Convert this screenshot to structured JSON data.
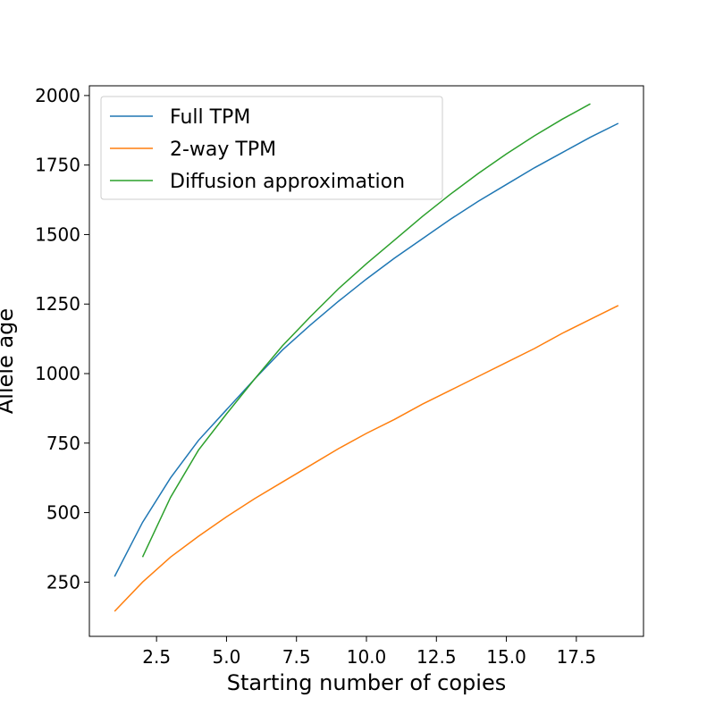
{
  "chart_data": {
    "type": "line",
    "title": "",
    "xlabel": "Starting number of copies",
    "ylabel": "Allele age",
    "xlim": [
      0.1,
      19.9
    ],
    "ylim": [
      55,
      2035
    ],
    "xticks": [
      2.5,
      5.0,
      7.5,
      10.0,
      12.5,
      15.0,
      17.5
    ],
    "xtick_labels": [
      "2.5",
      "5.0",
      "7.5",
      "10.0",
      "12.5",
      "15.0",
      "17.5"
    ],
    "yticks": [
      250,
      500,
      750,
      1000,
      1250,
      1500,
      1750,
      2000
    ],
    "ytick_labels": [
      "250",
      "500",
      "750",
      "1000",
      "1250",
      "1500",
      "1750",
      "2000"
    ],
    "grid": false,
    "legend_position": "top-left",
    "series": [
      {
        "name": "Full TPM",
        "color": "#1f77b4",
        "x": [
          1,
          2,
          3,
          4,
          5,
          6,
          7,
          8,
          9,
          10,
          11,
          12,
          13,
          14,
          15,
          16,
          17,
          18,
          19
        ],
        "y": [
          270,
          465,
          625,
          760,
          870,
          980,
          1085,
          1175,
          1260,
          1340,
          1415,
          1485,
          1555,
          1620,
          1680,
          1740,
          1795,
          1850,
          1900
        ]
      },
      {
        "name": "2-way TPM",
        "color": "#ff7f0e",
        "x": [
          1,
          2,
          3,
          4,
          5,
          6,
          7,
          8,
          9,
          10,
          11,
          12,
          13,
          14,
          15,
          16,
          17,
          18,
          19
        ],
        "y": [
          145,
          250,
          340,
          415,
          485,
          550,
          610,
          670,
          730,
          785,
          835,
          890,
          940,
          990,
          1040,
          1090,
          1145,
          1195,
          1245
        ]
      },
      {
        "name": "Diffusion approximation",
        "color": "#2ca02c",
        "x": [
          2,
          3,
          4,
          5,
          6,
          7,
          8,
          9,
          10,
          11,
          12,
          13,
          14,
          15,
          16,
          17,
          18
        ],
        "y": [
          340,
          555,
          725,
          855,
          980,
          1100,
          1205,
          1305,
          1395,
          1480,
          1565,
          1645,
          1720,
          1790,
          1855,
          1915,
          1970
        ]
      }
    ]
  }
}
